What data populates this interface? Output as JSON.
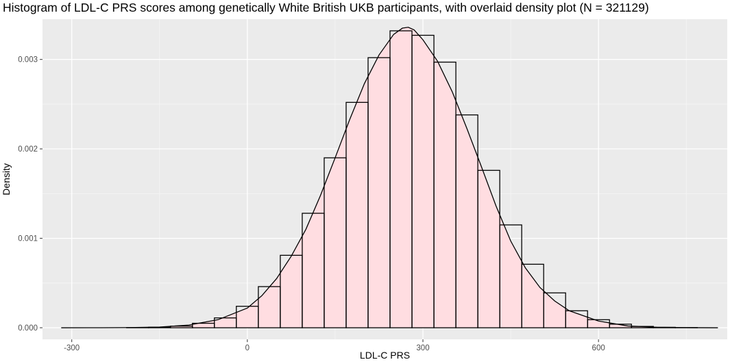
{
  "chart_data": {
    "type": "bar",
    "title": "Histogram of LDL-C PRS scores among genetically White British UKB participants, with overlaid density plot (N = 321129)",
    "xlabel": "LDL-C PRS",
    "ylabel": "Density",
    "xlim": [
      -350,
      820
    ],
    "ylim": [
      -0.00013,
      0.00345
    ],
    "x_ticks": [
      -300,
      0,
      300,
      600
    ],
    "x_tick_labels": [
      "-300",
      "0",
      "300",
      "600"
    ],
    "y_ticks": [
      0.0,
      0.001,
      0.002,
      0.003
    ],
    "y_tick_labels": [
      "0.000",
      "0.001",
      "0.002",
      "0.003"
    ],
    "grid": true,
    "legend": "none",
    "bin_width": 37.5,
    "bins": [
      {
        "x0": -318.8,
        "x1": -281.3,
        "density": 0.0
      },
      {
        "x0": -281.3,
        "x1": -243.8,
        "density": 0.0
      },
      {
        "x0": -243.8,
        "x1": -206.3,
        "density": 0.0
      },
      {
        "x0": -206.3,
        "x1": -168.8,
        "density": 2e-06
      },
      {
        "x0": -168.8,
        "x1": -131.3,
        "density": 6e-06
      },
      {
        "x0": -131.3,
        "x1": -93.8,
        "density": 1.8e-05
      },
      {
        "x0": -93.8,
        "x1": -56.3,
        "density": 5e-05
      },
      {
        "x0": -56.3,
        "x1": -18.8,
        "density": 0.00011
      },
      {
        "x0": -18.8,
        "x1": 18.8,
        "density": 0.00024
      },
      {
        "x0": 18.8,
        "x1": 56.3,
        "density": 0.00046
      },
      {
        "x0": 56.3,
        "x1": 93.8,
        "density": 0.00081
      },
      {
        "x0": 93.8,
        "x1": 131.3,
        "density": 0.00128
      },
      {
        "x0": 131.3,
        "x1": 168.8,
        "density": 0.0019
      },
      {
        "x0": 168.8,
        "x1": 206.3,
        "density": 0.00252
      },
      {
        "x0": 206.3,
        "x1": 243.8,
        "density": 0.00302
      },
      {
        "x0": 243.8,
        "x1": 281.3,
        "density": 0.00332
      },
      {
        "x0": 281.3,
        "x1": 318.8,
        "density": 0.00327
      },
      {
        "x0": 318.8,
        "x1": 356.3,
        "density": 0.00297
      },
      {
        "x0": 356.3,
        "x1": 393.8,
        "density": 0.00238
      },
      {
        "x0": 393.8,
        "x1": 431.3,
        "density": 0.00176
      },
      {
        "x0": 431.3,
        "x1": 468.8,
        "density": 0.00115
      },
      {
        "x0": 468.8,
        "x1": 506.3,
        "density": 0.00071
      },
      {
        "x0": 506.3,
        "x1": 543.8,
        "density": 0.00039
      },
      {
        "x0": 543.8,
        "x1": 581.3,
        "density": 0.00019
      },
      {
        "x0": 581.3,
        "x1": 618.8,
        "density": 9e-05
      },
      {
        "x0": 618.8,
        "x1": 656.3,
        "density": 4e-05
      },
      {
        "x0": 656.3,
        "x1": 693.8,
        "density": 1.5e-05
      },
      {
        "x0": 693.8,
        "x1": 731.3,
        "density": 5e-06
      },
      {
        "x0": 731.3,
        "x1": 768.8,
        "density": 2e-06
      },
      {
        "x0": 768.8,
        "x1": 806.3,
        "density": 0.0
      }
    ],
    "density_curve": {
      "x": [
        -318,
        -250,
        -200,
        -150,
        -100,
        -50,
        0,
        25,
        50,
        75,
        100,
        125,
        150,
        175,
        200,
        225,
        250,
        265,
        275,
        285,
        300,
        325,
        350,
        375,
        400,
        425,
        450,
        475,
        500,
        525,
        550,
        600,
        650,
        700,
        750,
        804
      ],
      "y": [
        0.0,
        5e-07,
        2e-06,
        8e-06,
        3e-05,
        9e-05,
        0.00022,
        0.00036,
        0.00055,
        0.0008,
        0.0011,
        0.00148,
        0.0019,
        0.00233,
        0.00273,
        0.00305,
        0.00328,
        0.00335,
        0.00336,
        0.00333,
        0.00322,
        0.00298,
        0.00264,
        0.00223,
        0.0018,
        0.00136,
        0.00097,
        0.00067,
        0.00045,
        0.0003,
        0.00019,
        7.5e-05,
        2e-05,
        5e-06,
        1e-06,
        0.0
      ]
    },
    "colors": {
      "panel_background": "#ebebeb",
      "grid_major": "#ffffff",
      "grid_minor": "#f5f5f5",
      "bar_outline": "#000000",
      "bar_fill": "none",
      "density_fill": "#ffdde1",
      "density_line": "#000000"
    }
  }
}
